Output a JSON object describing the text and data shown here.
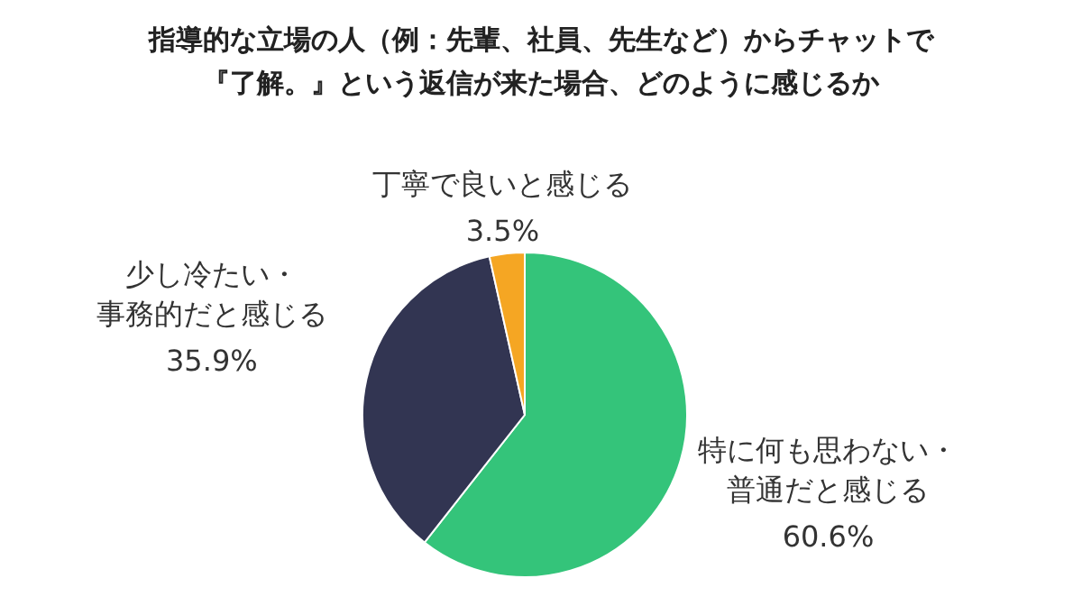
{
  "chart_data": {
    "type": "pie",
    "title": "指導的な立場の人（例：先輩、社員、先生など）からチャットで『了解。』という返信が来た場合、どのように感じるか",
    "categories": [
      "特に何も思わない・普通だと感じる",
      "少し冷たい・事務的だと感じる",
      "丁寧で良いと感じる"
    ],
    "values": [
      60.6,
      35.9,
      3.5
    ],
    "colors": [
      "#34c47a",
      "#323552",
      "#f5a623"
    ],
    "value_labels": [
      "60.6%",
      "35.9%",
      "3.5%"
    ],
    "legend": false
  }
}
